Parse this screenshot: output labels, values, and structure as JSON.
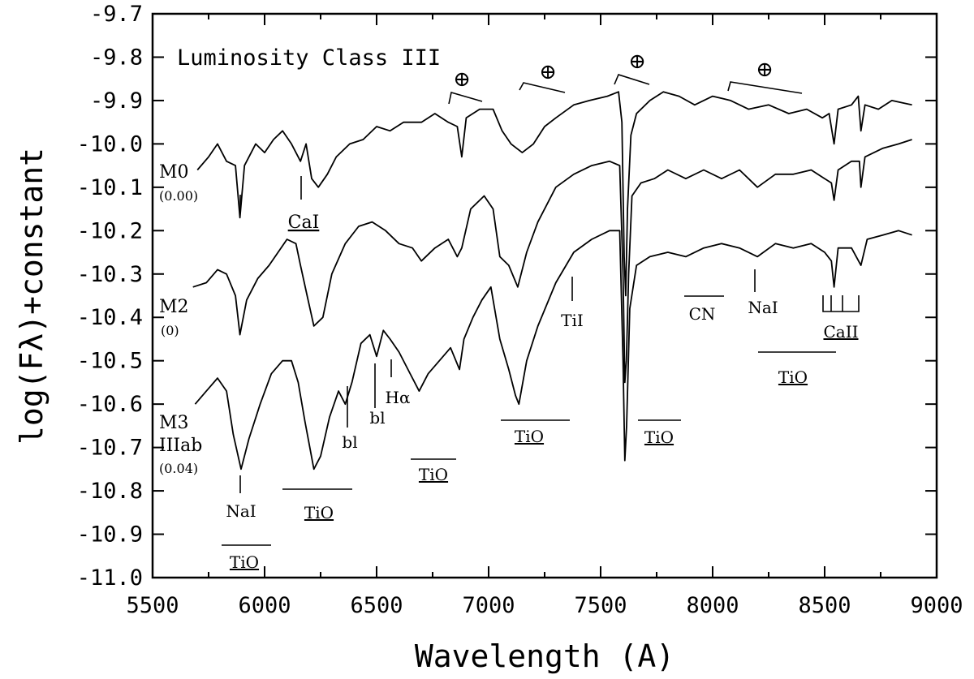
{
  "chart_data": {
    "type": "line",
    "title": "Luminosity Class III",
    "xlabel": "Wavelength (A)",
    "ylabel": "log(Fλ)+constant",
    "xlim": [
      5500,
      9000
    ],
    "ylim": [
      -11.0,
      -9.7
    ],
    "x_ticks": [
      "5500",
      "6000",
      "6500",
      "7000",
      "7500",
      "8000",
      "8500",
      "9000"
    ],
    "y_ticks": [
      "-9.7",
      "-9.8",
      "-9.9",
      "-10.0",
      "-10.1",
      "-10.2",
      "-10.3",
      "-10.4",
      "-10.5",
      "-10.6",
      "-10.7",
      "-10.8",
      "-10.9",
      "-11.0"
    ],
    "grid": false,
    "series": [
      {
        "name": "M0",
        "sub": "(0.00)",
        "points": [
          [
            5700,
            -10.06
          ],
          [
            5750,
            -10.03
          ],
          [
            5790,
            -10.0
          ],
          [
            5830,
            -10.04
          ],
          [
            5870,
            -10.05
          ],
          [
            5890,
            -10.17
          ],
          [
            5910,
            -10.05
          ],
          [
            5960,
            -10.0
          ],
          [
            6000,
            -10.02
          ],
          [
            6040,
            -9.99
          ],
          [
            6080,
            -9.97
          ],
          [
            6120,
            -10.0
          ],
          [
            6160,
            -10.04
          ],
          [
            6185,
            -10.0
          ],
          [
            6210,
            -10.08
          ],
          [
            6240,
            -10.1
          ],
          [
            6280,
            -10.07
          ],
          [
            6320,
            -10.03
          ],
          [
            6380,
            -10.0
          ],
          [
            6440,
            -9.99
          ],
          [
            6500,
            -9.96
          ],
          [
            6560,
            -9.97
          ],
          [
            6620,
            -9.95
          ],
          [
            6700,
            -9.95
          ],
          [
            6760,
            -9.93
          ],
          [
            6820,
            -9.95
          ],
          [
            6860,
            -9.96
          ],
          [
            6880,
            -10.03
          ],
          [
            6900,
            -9.94
          ],
          [
            6960,
            -9.92
          ],
          [
            7020,
            -9.92
          ],
          [
            7060,
            -9.97
          ],
          [
            7100,
            -10.0
          ],
          [
            7150,
            -10.02
          ],
          [
            7200,
            -10.0
          ],
          [
            7250,
            -9.96
          ],
          [
            7300,
            -9.94
          ],
          [
            7380,
            -9.91
          ],
          [
            7450,
            -9.9
          ],
          [
            7530,
            -9.89
          ],
          [
            7580,
            -9.88
          ],
          [
            7595,
            -9.95
          ],
          [
            7605,
            -10.26
          ],
          [
            7612,
            -10.35
          ],
          [
            7620,
            -10.15
          ],
          [
            7635,
            -9.98
          ],
          [
            7660,
            -9.93
          ],
          [
            7720,
            -9.9
          ],
          [
            7780,
            -9.88
          ],
          [
            7850,
            -9.89
          ],
          [
            7920,
            -9.91
          ],
          [
            8000,
            -9.89
          ],
          [
            8080,
            -9.9
          ],
          [
            8160,
            -9.92
          ],
          [
            8250,
            -9.91
          ],
          [
            8340,
            -9.93
          ],
          [
            8420,
            -9.92
          ],
          [
            8490,
            -9.94
          ],
          [
            8520,
            -9.93
          ],
          [
            8542,
            -10.0
          ],
          [
            8560,
            -9.92
          ],
          [
            8620,
            -9.91
          ],
          [
            8650,
            -9.89
          ],
          [
            8662,
            -9.97
          ],
          [
            8680,
            -9.91
          ],
          [
            8740,
            -9.92
          ],
          [
            8800,
            -9.9
          ],
          [
            8890,
            -9.91
          ]
        ]
      },
      {
        "name": "M2",
        "sub": "(0)",
        "points": [
          [
            5680,
            -10.33
          ],
          [
            5740,
            -10.32
          ],
          [
            5790,
            -10.29
          ],
          [
            5830,
            -10.3
          ],
          [
            5870,
            -10.35
          ],
          [
            5890,
            -10.44
          ],
          [
            5920,
            -10.36
          ],
          [
            5970,
            -10.31
          ],
          [
            6020,
            -10.28
          ],
          [
            6060,
            -10.25
          ],
          [
            6100,
            -10.22
          ],
          [
            6140,
            -10.23
          ],
          [
            6160,
            -10.28
          ],
          [
            6190,
            -10.35
          ],
          [
            6220,
            -10.42
          ],
          [
            6260,
            -10.4
          ],
          [
            6300,
            -10.3
          ],
          [
            6360,
            -10.23
          ],
          [
            6420,
            -10.19
          ],
          [
            6480,
            -10.18
          ],
          [
            6540,
            -10.2
          ],
          [
            6600,
            -10.23
          ],
          [
            6660,
            -10.24
          ],
          [
            6700,
            -10.27
          ],
          [
            6760,
            -10.24
          ],
          [
            6820,
            -10.22
          ],
          [
            6860,
            -10.26
          ],
          [
            6880,
            -10.24
          ],
          [
            6920,
            -10.15
          ],
          [
            6980,
            -10.12
          ],
          [
            7020,
            -10.15
          ],
          [
            7050,
            -10.26
          ],
          [
            7090,
            -10.28
          ],
          [
            7130,
            -10.33
          ],
          [
            7170,
            -10.25
          ],
          [
            7220,
            -10.18
          ],
          [
            7300,
            -10.1
          ],
          [
            7380,
            -10.07
          ],
          [
            7460,
            -10.05
          ],
          [
            7540,
            -10.04
          ],
          [
            7585,
            -10.05
          ],
          [
            7600,
            -10.3
          ],
          [
            7608,
            -10.55
          ],
          [
            7615,
            -10.5
          ],
          [
            7625,
            -10.3
          ],
          [
            7640,
            -10.12
          ],
          [
            7680,
            -10.09
          ],
          [
            7740,
            -10.08
          ],
          [
            7800,
            -10.06
          ],
          [
            7880,
            -10.08
          ],
          [
            7960,
            -10.06
          ],
          [
            8040,
            -10.08
          ],
          [
            8120,
            -10.06
          ],
          [
            8200,
            -10.1
          ],
          [
            8280,
            -10.07
          ],
          [
            8360,
            -10.07
          ],
          [
            8440,
            -10.06
          ],
          [
            8500,
            -10.08
          ],
          [
            8530,
            -10.09
          ],
          [
            8542,
            -10.13
          ],
          [
            8560,
            -10.06
          ],
          [
            8620,
            -10.04
          ],
          [
            8655,
            -10.04
          ],
          [
            8662,
            -10.1
          ],
          [
            8680,
            -10.03
          ],
          [
            8760,
            -10.01
          ],
          [
            8830,
            -10.0
          ],
          [
            8890,
            -9.99
          ]
        ]
      },
      {
        "name": "M3 IIIab",
        "sub": "(0.04)",
        "points": [
          [
            5690,
            -10.6
          ],
          [
            5740,
            -10.57
          ],
          [
            5790,
            -10.54
          ],
          [
            5830,
            -10.57
          ],
          [
            5860,
            -10.67
          ],
          [
            5895,
            -10.75
          ],
          [
            5930,
            -10.68
          ],
          [
            5980,
            -10.6
          ],
          [
            6030,
            -10.53
          ],
          [
            6080,
            -10.5
          ],
          [
            6120,
            -10.5
          ],
          [
            6150,
            -10.55
          ],
          [
            6180,
            -10.64
          ],
          [
            6220,
            -10.75
          ],
          [
            6250,
            -10.72
          ],
          [
            6290,
            -10.63
          ],
          [
            6330,
            -10.57
          ],
          [
            6360,
            -10.6
          ],
          [
            6390,
            -10.55
          ],
          [
            6430,
            -10.46
          ],
          [
            6470,
            -10.44
          ],
          [
            6500,
            -10.49
          ],
          [
            6530,
            -10.43
          ],
          [
            6560,
            -10.45
          ],
          [
            6600,
            -10.48
          ],
          [
            6640,
            -10.52
          ],
          [
            6690,
            -10.57
          ],
          [
            6730,
            -10.53
          ],
          [
            6780,
            -10.5
          ],
          [
            6830,
            -10.47
          ],
          [
            6870,
            -10.52
          ],
          [
            6890,
            -10.45
          ],
          [
            6930,
            -10.4
          ],
          [
            6970,
            -10.36
          ],
          [
            7010,
            -10.33
          ],
          [
            7050,
            -10.45
          ],
          [
            7090,
            -10.52
          ],
          [
            7120,
            -10.58
          ],
          [
            7135,
            -10.6
          ],
          [
            7170,
            -10.5
          ],
          [
            7220,
            -10.42
          ],
          [
            7300,
            -10.32
          ],
          [
            7380,
            -10.25
          ],
          [
            7460,
            -10.22
          ],
          [
            7540,
            -10.2
          ],
          [
            7585,
            -10.2
          ],
          [
            7600,
            -10.5
          ],
          [
            7608,
            -10.73
          ],
          [
            7616,
            -10.65
          ],
          [
            7630,
            -10.38
          ],
          [
            7660,
            -10.28
          ],
          [
            7720,
            -10.26
          ],
          [
            7800,
            -10.25
          ],
          [
            7880,
            -10.26
          ],
          [
            7960,
            -10.24
          ],
          [
            8040,
            -10.23
          ],
          [
            8120,
            -10.24
          ],
          [
            8200,
            -10.26
          ],
          [
            8280,
            -10.23
          ],
          [
            8360,
            -10.24
          ],
          [
            8440,
            -10.23
          ],
          [
            8500,
            -10.25
          ],
          [
            8530,
            -10.27
          ],
          [
            8542,
            -10.33
          ],
          [
            8560,
            -10.24
          ],
          [
            8620,
            -10.24
          ],
          [
            8662,
            -10.28
          ],
          [
            8690,
            -10.22
          ],
          [
            8760,
            -10.21
          ],
          [
            8830,
            -10.2
          ],
          [
            8890,
            -10.21
          ]
        ]
      }
    ],
    "annotations": [
      {
        "text": "CaI",
        "underline": true
      },
      {
        "text": "TiI"
      },
      {
        "text": "CN"
      },
      {
        "text": "NaI"
      },
      {
        "text": "CaII",
        "underline": true
      },
      {
        "text": "TiO",
        "underline": true
      },
      {
        "text": "bl"
      },
      {
        "text": "bl"
      },
      {
        "text": "Hα"
      },
      {
        "text": "TiO",
        "underline": true
      },
      {
        "text": "TiO",
        "underline": true
      },
      {
        "text": "TiO",
        "underline": true
      },
      {
        "text": "NaI"
      },
      {
        "text": "TiO",
        "underline": true
      },
      {
        "text": "TiO",
        "underline": true
      },
      {
        "text": "⊕"
      },
      {
        "text": "⊕"
      },
      {
        "text": "⊕"
      },
      {
        "text": "⊕"
      }
    ]
  }
}
